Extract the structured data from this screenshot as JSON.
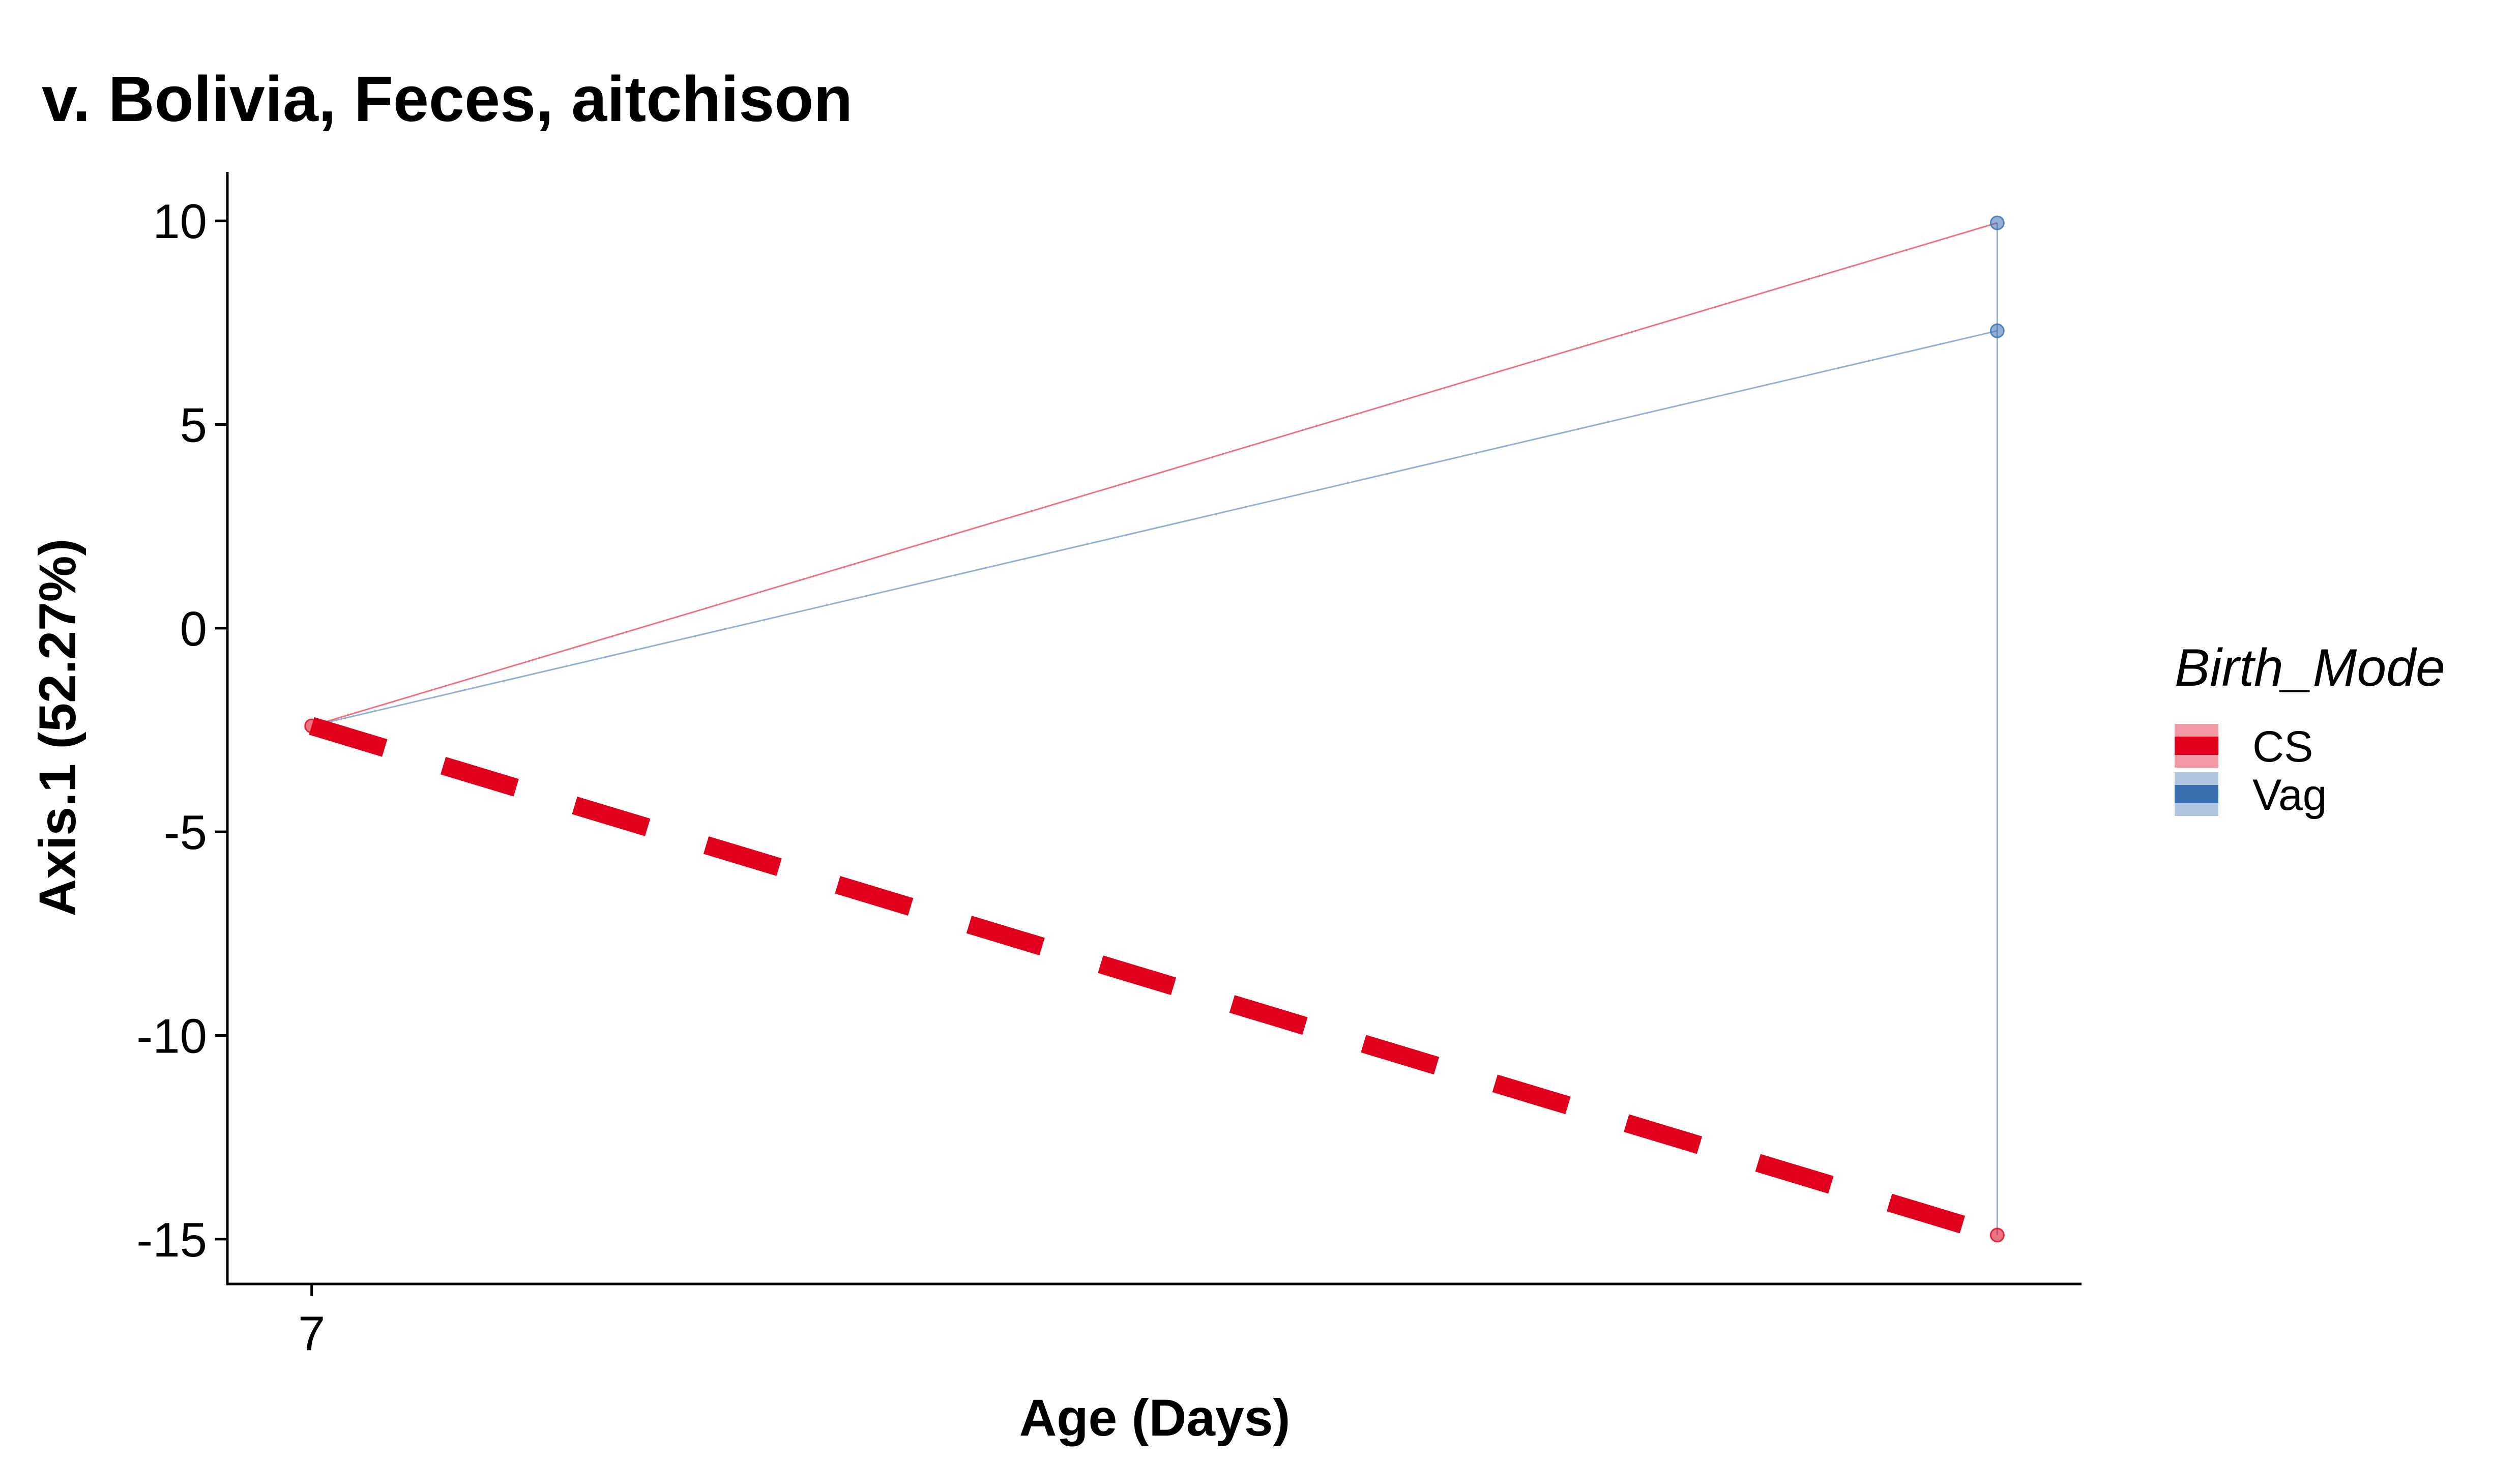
{
  "chart_data": {
    "type": "line",
    "title": "v. Bolivia, Feces, aitchison",
    "xlabel": "Age (Days)",
    "ylabel": "Axis.1 (52.27%)",
    "x_ticks": [
      7
    ],
    "y_ticks": [
      10,
      5,
      0,
      -5,
      -10,
      -15
    ],
    "xlim": [
      6.5,
      17.5
    ],
    "ylim": [
      -16.1,
      11.2
    ],
    "grid": false,
    "legend": {
      "title": "Birth_Mode",
      "position": "right",
      "entries": [
        "CS",
        "Vag"
      ]
    },
    "colors": {
      "CS": "#e0001b",
      "Vag": "#3a6fb0"
    },
    "series": [
      {
        "name": "CS",
        "type": "trajectory",
        "x": [
          7,
          17
        ],
        "y": [
          -2.4,
          9.95
        ]
      },
      {
        "name": "Vag",
        "type": "trajectory",
        "x": [
          7,
          17
        ],
        "y": [
          -2.4,
          7.3
        ]
      },
      {
        "name": "Vag",
        "type": "trajectory",
        "x": [
          17,
          17
        ],
        "y": [
          9.95,
          -14.9
        ]
      },
      {
        "name": "CS",
        "type": "mean-trend",
        "x": [
          7,
          17
        ],
        "y": [
          -2.4,
          -14.9
        ]
      }
    ],
    "points": [
      {
        "name": "CS",
        "x": 7,
        "y": -2.4
      },
      {
        "name": "Vag",
        "x": 17,
        "y": 9.95
      },
      {
        "name": "Vag",
        "x": 17,
        "y": 7.3
      },
      {
        "name": "CS",
        "x": 17,
        "y": -14.9
      }
    ]
  }
}
